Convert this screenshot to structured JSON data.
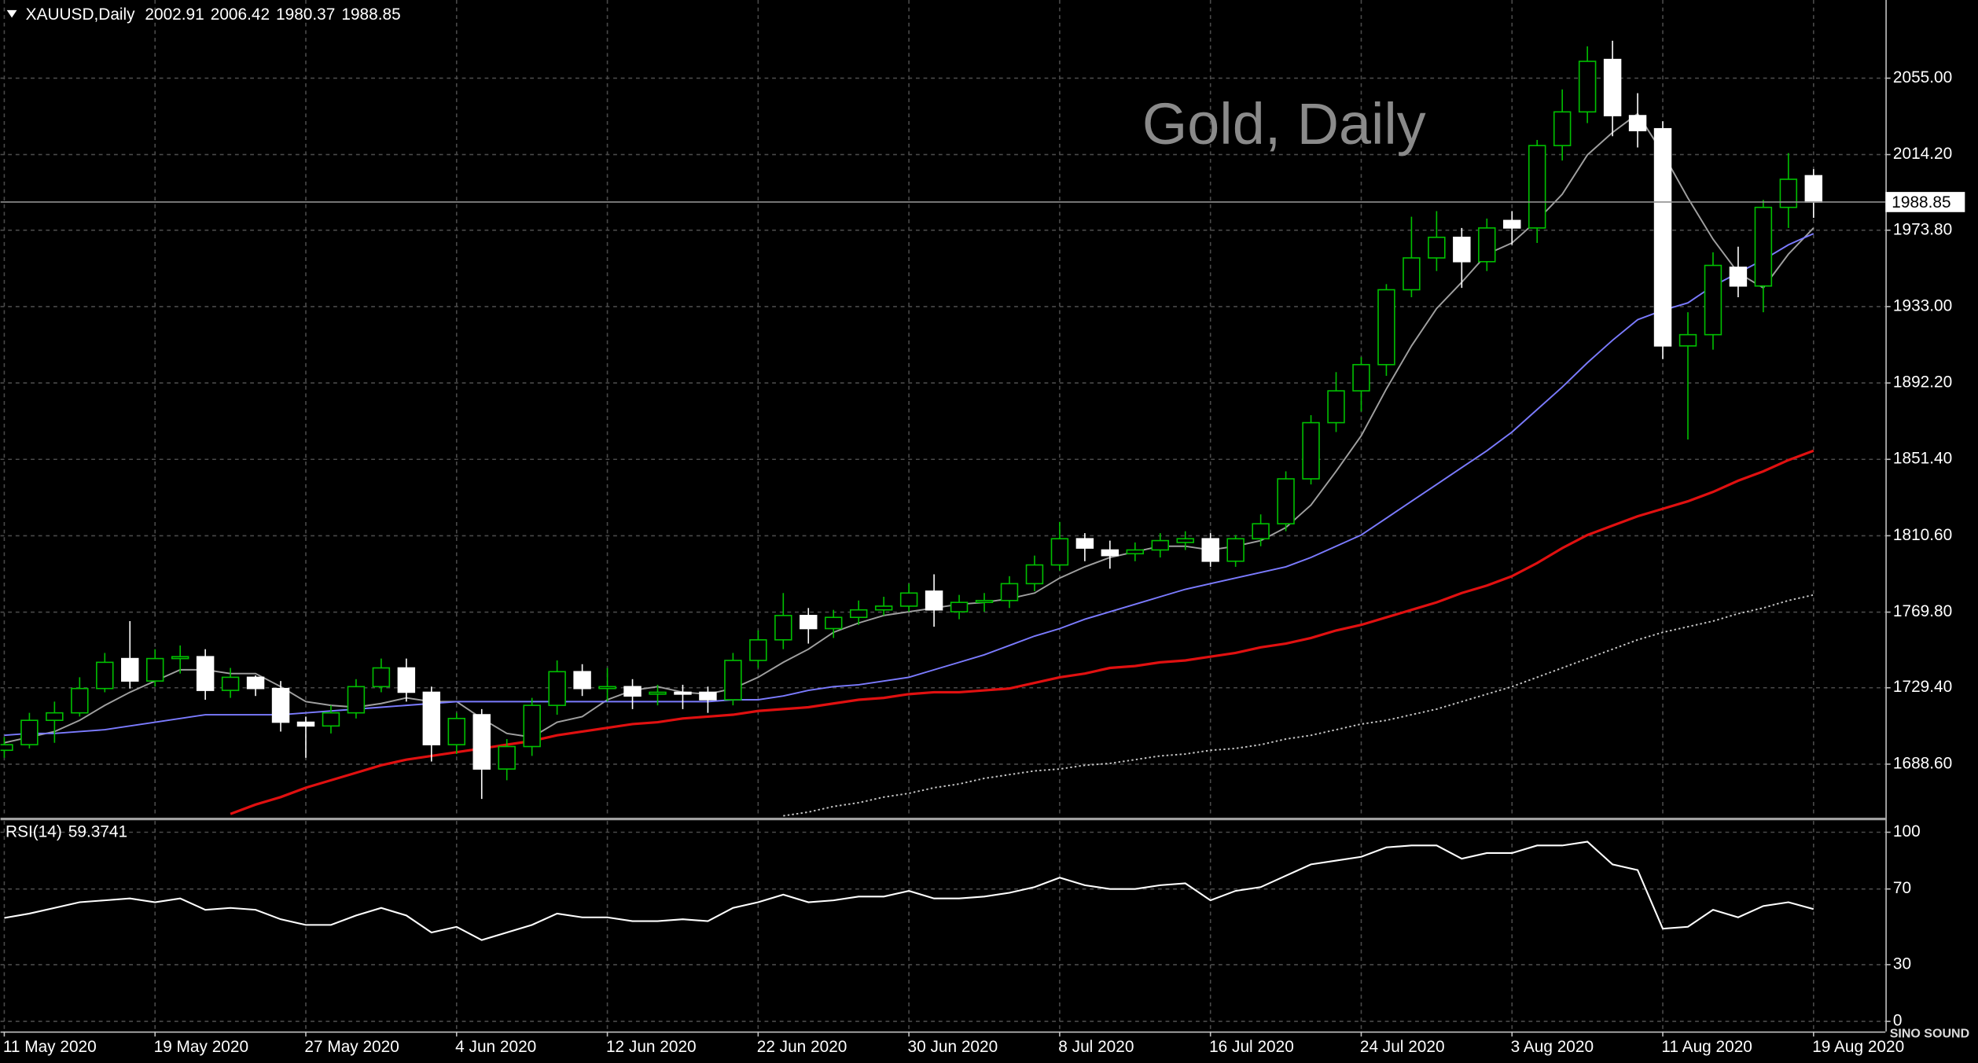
{
  "chart_data": [
    {
      "type": "candlestick",
      "title": "XAUUSD,Daily",
      "annotation": "Gold, Daily",
      "logo_text": "SINO SOUND",
      "categories": [
        "11 May 2020",
        null,
        null,
        null,
        null,
        null,
        "19 May 2020",
        null,
        null,
        null,
        null,
        null,
        "27 May 2020",
        null,
        null,
        null,
        null,
        null,
        "4 Jun 2020",
        null,
        null,
        null,
        null,
        null,
        "12 Jun 2020",
        null,
        null,
        null,
        null,
        null,
        "22 Jun 2020",
        null,
        null,
        null,
        null,
        null,
        "30 Jun 2020",
        null,
        null,
        null,
        null,
        null,
        "8 Jul 2020",
        null,
        null,
        null,
        null,
        null,
        "16 Jul 2020",
        null,
        null,
        null,
        null,
        null,
        "24 Jul 2020",
        null,
        null,
        null,
        null,
        null,
        "3 Aug 2020",
        null,
        null,
        null,
        null,
        null,
        "11 Aug 2020",
        null,
        null,
        null,
        null,
        null,
        "19 Aug 2020"
      ],
      "open": [
        1696,
        1699,
        1712,
        1716,
        1729,
        1745,
        1733,
        1745,
        1746,
        1728,
        1735,
        1729,
        1711,
        1709,
        1716,
        1730,
        1740,
        1727,
        1699,
        1715,
        1686,
        1698,
        1720,
        1738,
        1729,
        1730,
        1726,
        1727,
        1727,
        1723,
        1744,
        1755,
        1768,
        1761,
        1767,
        1771,
        1773,
        1781,
        1770,
        1775,
        1776,
        1785,
        1795,
        1809,
        1803,
        1801,
        1803,
        1807,
        1809,
        1797,
        1809,
        1817,
        1841,
        1871,
        1888,
        1902,
        1942,
        1959,
        1970,
        1957,
        1979,
        1975,
        2019,
        2037,
        2065,
        2035,
        2028,
        1912,
        1918,
        1954,
        1944,
        1986,
        2002.91
      ],
      "high": [
        1703,
        1716,
        1722,
        1735,
        1748,
        1765,
        1750,
        1752,
        1750,
        1740,
        1736,
        1733,
        1714,
        1720,
        1734,
        1745,
        1745,
        1730,
        1716,
        1718,
        1702,
        1724,
        1744,
        1742,
        1740,
        1734,
        1731,
        1731,
        1730,
        1748,
        1760,
        1780,
        1772,
        1771,
        1776,
        1778,
        1785,
        1790,
        1779,
        1780,
        1789,
        1800,
        1818,
        1812,
        1808,
        1807,
        1812,
        1813,
        1812,
        1811,
        1822,
        1845,
        1875,
        1898,
        1906,
        1945,
        1981,
        1984,
        1975,
        1980,
        1984,
        2022,
        2049,
        2072,
        2075,
        2047,
        2032,
        1930,
        1962,
        1965,
        1990,
        2015,
        2006.42
      ],
      "low": [
        1692,
        1697,
        1700,
        1714,
        1727,
        1729,
        1730,
        1737,
        1723,
        1724,
        1725,
        1706,
        1692,
        1705,
        1713,
        1727,
        1722,
        1690,
        1694,
        1670,
        1680,
        1693,
        1715,
        1725,
        1722,
        1718,
        1720,
        1718,
        1716,
        1720,
        1740,
        1750,
        1753,
        1756,
        1763,
        1768,
        1770,
        1762,
        1766,
        1770,
        1772,
        1781,
        1792,
        1797,
        1793,
        1797,
        1799,
        1803,
        1794,
        1794,
        1805,
        1813,
        1838,
        1866,
        1877,
        1896,
        1938,
        1952,
        1943,
        1952,
        1966,
        1967,
        2011,
        2031,
        2024,
        2018,
        1905,
        1862,
        1910,
        1938,
        1930,
        1975,
        1980.37
      ],
      "close": [
        1699,
        1712,
        1716,
        1729,
        1743,
        1733,
        1745,
        1746,
        1728,
        1735,
        1729,
        1711,
        1709,
        1716,
        1730,
        1740,
        1727,
        1699,
        1713,
        1686,
        1698,
        1720,
        1738,
        1729,
        1730,
        1725,
        1727,
        1726,
        1723,
        1744,
        1755,
        1768,
        1761,
        1767,
        1771,
        1773,
        1780,
        1771,
        1775,
        1776,
        1785,
        1795,
        1809,
        1804,
        1800,
        1803,
        1808,
        1809,
        1797,
        1809,
        1817,
        1841,
        1871,
        1888,
        1902,
        1942,
        1959,
        1970,
        1957,
        1975,
        1975,
        2019,
        2037,
        2064,
        2035,
        2027,
        1912,
        1918,
        1955,
        1944,
        1986,
        2001,
        1988.85
      ],
      "up_color": "#00c000",
      "down_color": "#ffffff",
      "series": [
        {
          "color": "#a0a0a0",
          "values": [
            1700,
            1703,
            1706,
            1712,
            1720,
            1727,
            1733,
            1739,
            1739,
            1737,
            1737,
            1730,
            1722,
            1720,
            1719,
            1721,
            1724,
            1722,
            1722,
            1713,
            1705,
            1703,
            1711,
            1714,
            1723,
            1728,
            1730,
            1727,
            1726,
            1729,
            1735,
            1743,
            1750,
            1759,
            1764,
            1768,
            1770,
            1772,
            1774,
            1775,
            1777,
            1780,
            1788,
            1794,
            1799,
            1802,
            1805,
            1805,
            1803,
            1805,
            1808,
            1815,
            1827,
            1845,
            1864,
            1889,
            1912,
            1932,
            1946,
            1961,
            1967,
            1979,
            1993,
            2014,
            2026,
            2036,
            2015,
            1991,
            1969,
            1951,
            1943,
            1961,
            1975
          ]
        },
        {
          "color": "#7b7bff",
          "values": [
            1704,
            1705,
            1705,
            1706,
            1707,
            1709,
            1711,
            1713,
            1715,
            1715,
            1715,
            1715,
            1716,
            1717,
            1718,
            1719,
            1720,
            1721,
            1722,
            1722,
            1722,
            1722,
            1722,
            1722,
            1722,
            1722,
            1722,
            1722,
            1722,
            1723,
            1723,
            1725,
            1728,
            1730,
            1731,
            1733,
            1735,
            1739,
            1743,
            1747,
            1752,
            1757,
            1761,
            1766,
            1770,
            1774,
            1778,
            1782,
            1785,
            1788,
            1791,
            1794,
            1799,
            1805,
            1811,
            1820,
            1829,
            1838,
            1847,
            1856,
            1866,
            1878,
            1890,
            1903,
            1915,
            1926,
            1931,
            1935,
            1944,
            1951,
            1958,
            1966,
            1972
          ]
        },
        {
          "color": "#e01010",
          "values": [
            null,
            null,
            null,
            null,
            null,
            null,
            null,
            null,
            null,
            1662,
            1667,
            1671,
            1676,
            1680,
            1684,
            1688,
            1691,
            1693,
            1695,
            1697,
            1699,
            1701,
            1704,
            1706,
            1708,
            1710,
            1711,
            1713,
            1714,
            1715,
            1717,
            1718,
            1719,
            1721,
            1723,
            1724,
            1726,
            1727,
            1727,
            1728,
            1729,
            1732,
            1735,
            1737,
            1740,
            1741,
            1743,
            1744,
            1746,
            1748,
            1751,
            1753,
            1756,
            1760,
            1763,
            1767,
            1771,
            1775,
            1780,
            1784,
            1789,
            1796,
            1804,
            1811,
            1816,
            1821,
            1825,
            1829,
            1834,
            1840,
            1845,
            1851,
            1856
          ]
        },
        {
          "color": "#c8c8c8",
          "dashed": true,
          "values": [
            null,
            null,
            null,
            null,
            null,
            null,
            null,
            null,
            null,
            null,
            null,
            null,
            null,
            null,
            null,
            null,
            null,
            null,
            null,
            null,
            null,
            null,
            null,
            null,
            null,
            null,
            null,
            null,
            null,
            null,
            null,
            1661,
            1663,
            1666,
            1668,
            1671,
            1673,
            1676,
            1678,
            1681,
            1683,
            1685,
            1686,
            1688,
            1689,
            1691,
            1693,
            1694,
            1696,
            1697,
            1699,
            1702,
            1704,
            1707,
            1710,
            1712,
            1715,
            1718,
            1722,
            1726,
            1730,
            1735,
            1740,
            1745,
            1750,
            1755,
            1759,
            1762,
            1765,
            1769,
            1772,
            1776,
            1779
          ]
        }
      ],
      "current_price": 1988.85,
      "ylim": [
        1660.31,
        2096.76
      ],
      "yticks": [
        {
          "value": 2055,
          "label": "2055.00"
        },
        {
          "value": 2014.2,
          "label": "2014.20"
        },
        {
          "value": 1973.8,
          "label": "1973.80"
        },
        {
          "value": 1933,
          "label": "1933.00"
        },
        {
          "value": 1892.2,
          "label": "1892.20"
        },
        {
          "value": 1851.4,
          "label": "1851.40"
        },
        {
          "value": 1810.6,
          "label": "1810.60"
        },
        {
          "value": 1769.8,
          "label": "1769.80"
        },
        {
          "value": 1729.4,
          "label": "1729.40"
        },
        {
          "value": 1688.6,
          "label": "1688.60"
        }
      ],
      "grid": true
    },
    {
      "type": "line",
      "title": "RSI(14)",
      "color": "#ffffff",
      "values": [
        54.7,
        57,
        60,
        63,
        64,
        65,
        63,
        65,
        59,
        60,
        59,
        54,
        51,
        51,
        56,
        60,
        56,
        47,
        50,
        43,
        47,
        51,
        57,
        55,
        55,
        53,
        53,
        54,
        53,
        60,
        63,
        67,
        63,
        64,
        66,
        66,
        69,
        65,
        65,
        66,
        68,
        71,
        76,
        72,
        70,
        70,
        72,
        73,
        64,
        69,
        71,
        77,
        83,
        85,
        87,
        92,
        93,
        93,
        86,
        89,
        89,
        93,
        93,
        95,
        83,
        80,
        49,
        50,
        59,
        55,
        61,
        63,
        59.3741
      ],
      "ylim": [
        0,
        100
      ],
      "yticks": [
        100,
        70,
        30,
        0
      ],
      "grid": true
    }
  ]
}
